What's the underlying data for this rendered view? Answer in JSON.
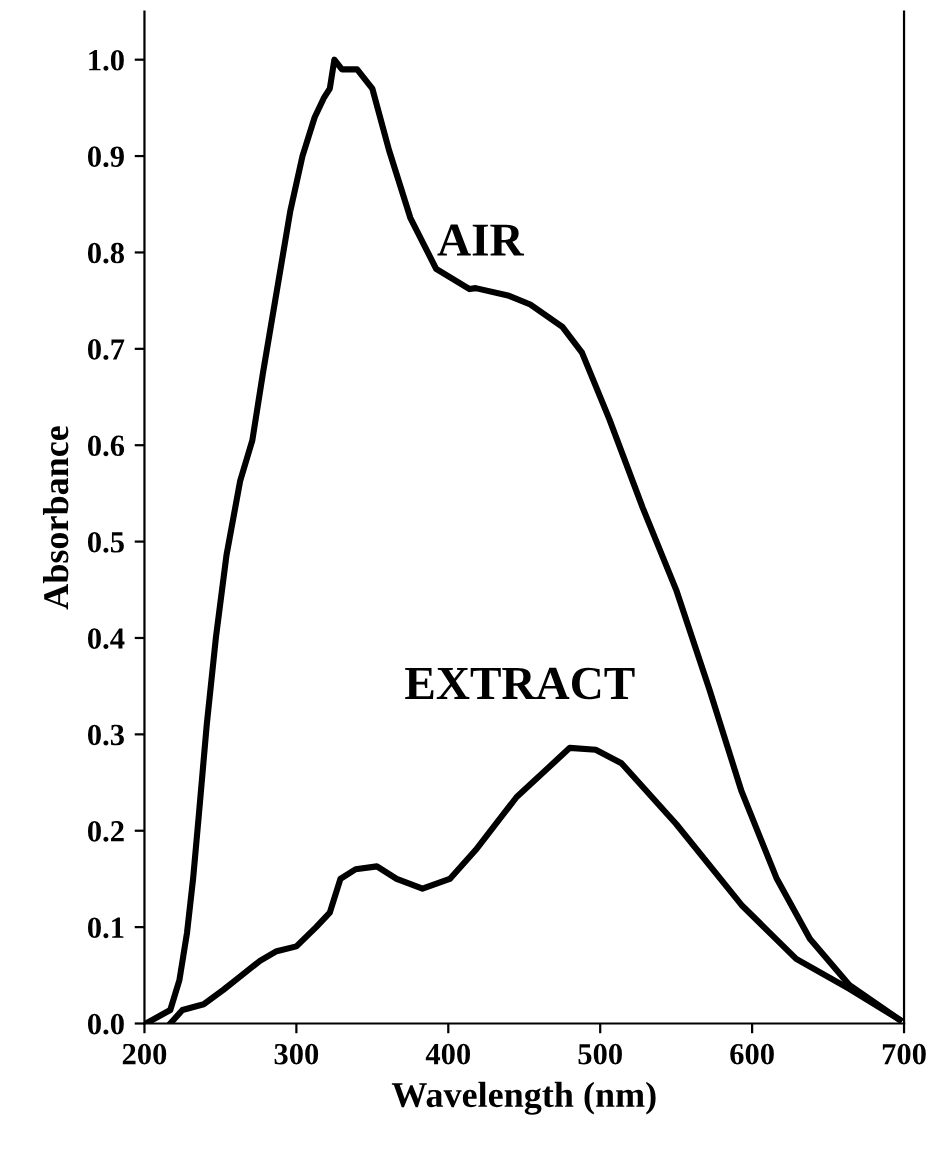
{
  "chart_data": {
    "type": "line",
    "xlabel": "Wavelength (nm)",
    "ylabel": "Absorbance",
    "xlim": [
      200,
      700
    ],
    "xticks": [
      200,
      300,
      400,
      500,
      600,
      700
    ],
    "ylim": [
      0,
      1.05
    ],
    "yticks": [
      {
        "value": 0,
        "label": "0.0"
      },
      {
        "value": 0.1,
        "label": "0.1"
      },
      {
        "value": 0.2,
        "label": "0.2"
      },
      {
        "value": 0.3,
        "label": "0.3"
      },
      {
        "value": 0.4,
        "label": "0.4"
      },
      {
        "value": 0.5,
        "label": "0.5"
      },
      {
        "value": 0.6,
        "label": "0.6"
      },
      {
        "value": 0.7,
        "label": "0.7"
      },
      {
        "value": 0.8,
        "label": "0.8"
      },
      {
        "value": 0.9,
        "label": "0.9"
      },
      {
        "value": 1.0,
        "label": "1.0"
      }
    ],
    "grid": false,
    "marker": "none",
    "line_style": "solid",
    "series": [
      {
        "name": "AIR",
        "color": "#000000",
        "x": [
          201,
          217,
          223,
          228,
          232,
          236,
          241,
          247,
          254,
          263,
          271,
          278,
          287,
          296,
          304,
          312,
          318,
          322,
          325,
          330,
          340,
          350,
          361,
          375,
          392,
          414,
          418,
          440,
          454,
          475,
          488,
          506,
          528,
          550,
          572,
          593,
          616,
          638,
          664,
          697
        ],
        "values": [
          0,
          0.014,
          0.045,
          0.094,
          0.15,
          0.22,
          0.31,
          0.4,
          0.486,
          0.563,
          0.605,
          0.675,
          0.759,
          0.843,
          0.9,
          0.94,
          0.96,
          0.97,
          1.0,
          0.99,
          0.99,
          0.97,
          0.906,
          0.836,
          0.783,
          0.762,
          0.763,
          0.755,
          0.746,
          0.723,
          0.696,
          0.627,
          0.535,
          0.45,
          0.346,
          0.241,
          0.151,
          0.088,
          0.04,
          0.004
        ]
      },
      {
        "name": "EXTRACT",
        "color": "#000000",
        "x": [
          217,
          225,
          239,
          252,
          260,
          276,
          287,
          300,
          313,
          322,
          329,
          339,
          353,
          366,
          383,
          401,
          418,
          445,
          480,
          497,
          514,
          550,
          593,
          629,
          664,
          697
        ],
        "values": [
          0,
          0.014,
          0.02,
          0.035,
          0.045,
          0.065,
          0.075,
          0.08,
          0.1,
          0.115,
          0.15,
          0.16,
          0.163,
          0.15,
          0.14,
          0.15,
          0.18,
          0.235,
          0.286,
          0.284,
          0.27,
          0.207,
          0.123,
          0.067,
          0.036,
          0.004
        ]
      }
    ]
  }
}
